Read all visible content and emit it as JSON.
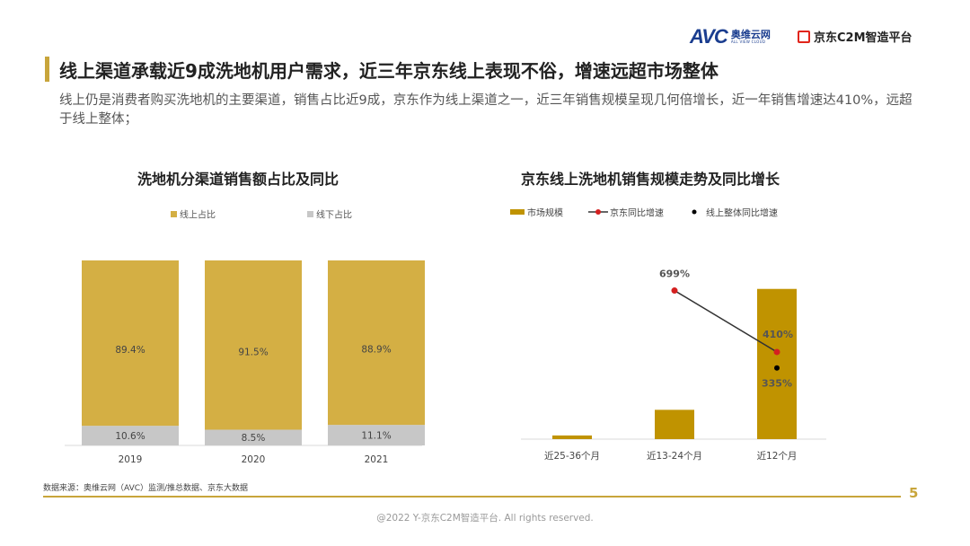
{
  "brand": {
    "avc_logo_text": "AVC",
    "avc_cn": "奥维云网",
    "avc_en": "ALL VIEW CLOUD",
    "jd_logo_text": "京东C2M智造平台"
  },
  "header": {
    "title": "线上渠道承载近9成洗地机用户需求，近三年京东线上表现不俗，增速远超市场整体",
    "description": "线上仍是消费者购买洗地机的主要渠道，销售占比近9成，京东作为线上渠道之一，近三年销售规模呈现几何倍增长，近一年销售增速达410%，远超于线上整体；"
  },
  "colors": {
    "gold": "#c8a53b",
    "bar_online": "#d4af44",
    "bar_offline": "#c7c7c7",
    "market_bar": "#c09300",
    "jd_point": "#d42020",
    "line": "#333333"
  },
  "chart_data": [
    {
      "type": "bar",
      "stacked": true,
      "percent": true,
      "title": "洗地机分渠道销售额占比及同比",
      "categories": [
        "2019",
        "2020",
        "2021"
      ],
      "series": [
        {
          "name": "线上占比",
          "values": [
            89.4,
            91.5,
            88.9
          ],
          "labels": [
            "89.4%",
            "91.5%",
            "88.9%"
          ]
        },
        {
          "name": "线下占比",
          "values": [
            10.6,
            8.5,
            11.1
          ],
          "labels": [
            "10.6%",
            "8.5%",
            "11.1%"
          ]
        }
      ],
      "ylim": [
        0,
        100
      ],
      "grid": false,
      "legend": "top"
    },
    {
      "type": "bar",
      "title": "京东线上洗地机销售规模走势及同比增长",
      "categories": [
        "近25-36个月",
        "近13-24个月",
        "近12个月"
      ],
      "series": [
        {
          "name": "市场规模",
          "type": "bar",
          "values": [
            2,
            16,
            82
          ]
        },
        {
          "name": "京东同比增速",
          "type": "line",
          "values": [
            null,
            699,
            410
          ],
          "labels": [
            "",
            "699%",
            "410%"
          ]
        },
        {
          "name": "线上整体同比增速",
          "type": "scatter",
          "values": [
            null,
            null,
            335
          ],
          "labels": [
            "",
            "",
            "335%"
          ]
        }
      ],
      "grid": false,
      "legend": "top"
    }
  ],
  "footer": {
    "source": "数据来源：奥维云网（AVC）监测/推总数据、京东大数据",
    "page_number": "5",
    "copyright": "@2022 Y-京东C2M智造平台. All rights reserved."
  }
}
